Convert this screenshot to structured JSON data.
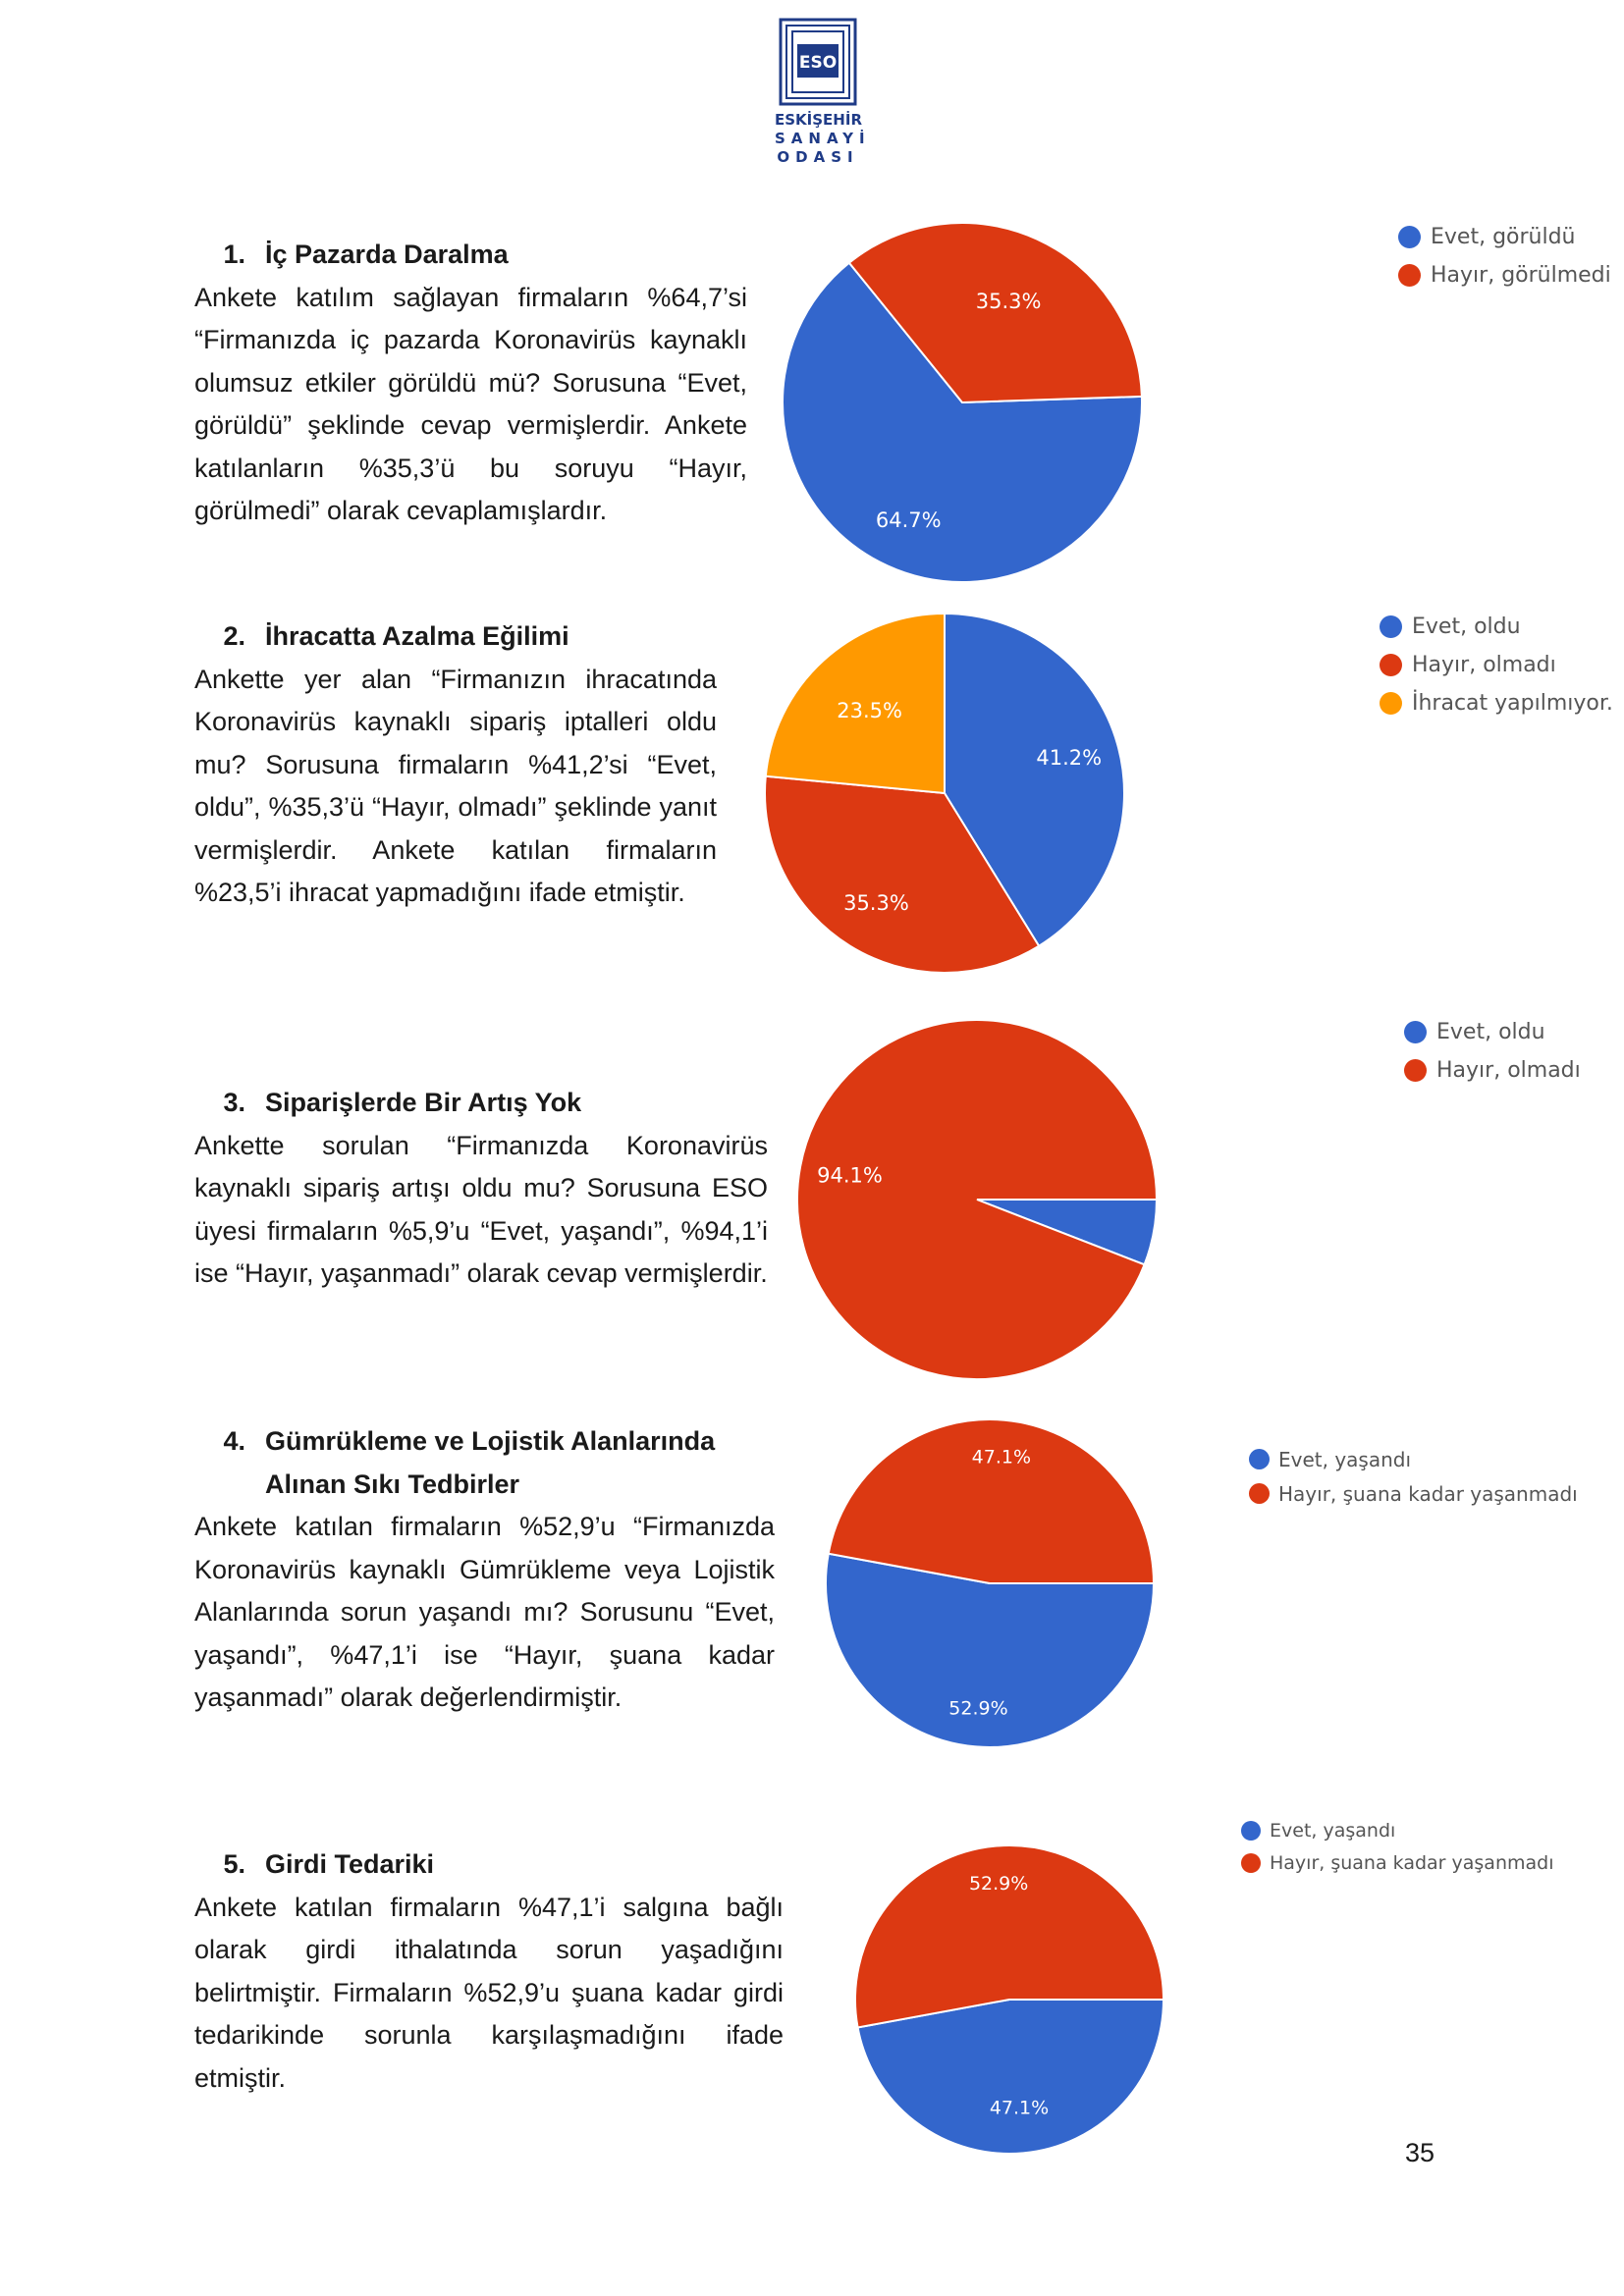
{
  "logo": {
    "abbr": "ESO",
    "line1": "ESKİŞEHİR",
    "line2": "SANAYİ",
    "line3": "ODASI"
  },
  "sections": [
    {
      "number": "1.",
      "title": "İç Pazarda Daralma",
      "body": "Ankete katılım sağlayan firmaların %64,7’si “Firmanızda iç pazarda Koronavirüs kaynaklı olumsuz etkiler görüldü mü? Sorusuna “Evet, görüldü” şeklinde cevap vermişlerdir. Ankete katılanların %35,3’ü bu soruyu “Hayır, görülmedi” olarak cevaplamışlardır."
    },
    {
      "number": "2.",
      "title": "İhracatta Azalma Eğilimi",
      "body": "Ankette yer alan “Firmanızın ihracatında Koronavirüs kaynaklı sipariş iptalleri oldu mu? Sorusuna firmaların %41,2’si “Evet, oldu”, %35,3’ü “Hayır, olmadı” şeklinde yanıt vermişlerdir. Ankete katılan firmaların %23,5’i ihracat yapmadığını ifade etmiştir."
    },
    {
      "number": "3.",
      "title": "Siparişlerde Bir Artış Yok",
      "body": "Ankette sorulan “Firmanızda Koronavirüs kaynaklı sipariş artışı oldu mu? Sorusuna ESO üyesi firmaların %5,9’u “Evet, yaşandı”, %94,1’i ise “Hayır, yaşanmadı” olarak cevap vermişlerdir."
    },
    {
      "number": "4.",
      "title": "Gümrükleme ve Lojistik Alanlarında Alınan Sıkı Tedbirler",
      "body": "Ankete katılan firmaların %52,9’u “Firmanızda Koronavirüs kaynaklı Gümrükleme veya Lojistik Alanlarında sorun yaşandı mı? Sorusunu “Evet, yaşandı”, %47,1’i ise “Hayır, şuana kadar yaşanmadı” olarak değerlendirmiştir."
    },
    {
      "number": "5.",
      "title": "Girdi Tedariki",
      "body": "Ankete katılan firmaların %47,1’i salgına bağlı olarak girdi ithalatında sorun yaşadığını belirtmiştir. Firmaların %52,9’u şuana kadar girdi tedarikinde sorunla karşılaşmadığını ifade etmiştir."
    }
  ],
  "chart_data": [
    {
      "type": "pie",
      "labels": [
        "Evet, görüldü",
        "Hayır, görülmedi"
      ],
      "values": [
        64.7,
        35.3
      ],
      "value_labels": [
        "64.7%",
        "35.3%"
      ],
      "colors": [
        "#3366cc",
        "#dc3912"
      ],
      "legend_position": "right"
    },
    {
      "type": "pie",
      "labels": [
        "Evet, oldu",
        "Hayır, olmadı",
        "İhracat yapılmıyor."
      ],
      "values": [
        41.2,
        35.3,
        23.5
      ],
      "value_labels": [
        "41.2%",
        "35.3%",
        "23.5%"
      ],
      "colors": [
        "#3366cc",
        "#dc3912",
        "#ff9900"
      ],
      "legend_position": "right"
    },
    {
      "type": "pie",
      "labels": [
        "Evet, oldu",
        "Hayır, olmadı"
      ],
      "values": [
        5.9,
        94.1
      ],
      "value_labels": [
        "",
        "94.1%"
      ],
      "colors": [
        "#3366cc",
        "#dc3912"
      ],
      "legend_position": "right"
    },
    {
      "type": "pie",
      "labels": [
        "Evet, yaşandı",
        "Hayır, şuana kadar yaşanmadı"
      ],
      "values": [
        52.9,
        47.1
      ],
      "value_labels": [
        "52.9%",
        "47.1%"
      ],
      "colors": [
        "#3366cc",
        "#dc3912"
      ],
      "legend_position": "right"
    },
    {
      "type": "pie",
      "labels": [
        "Evet, yaşandı",
        "Hayır, şuana kadar yaşanmadı"
      ],
      "values": [
        47.1,
        52.9
      ],
      "value_labels": [
        "47.1%",
        "52.9%"
      ],
      "colors": [
        "#3366cc",
        "#dc3912"
      ],
      "legend_position": "right"
    }
  ],
  "page_number": "35"
}
